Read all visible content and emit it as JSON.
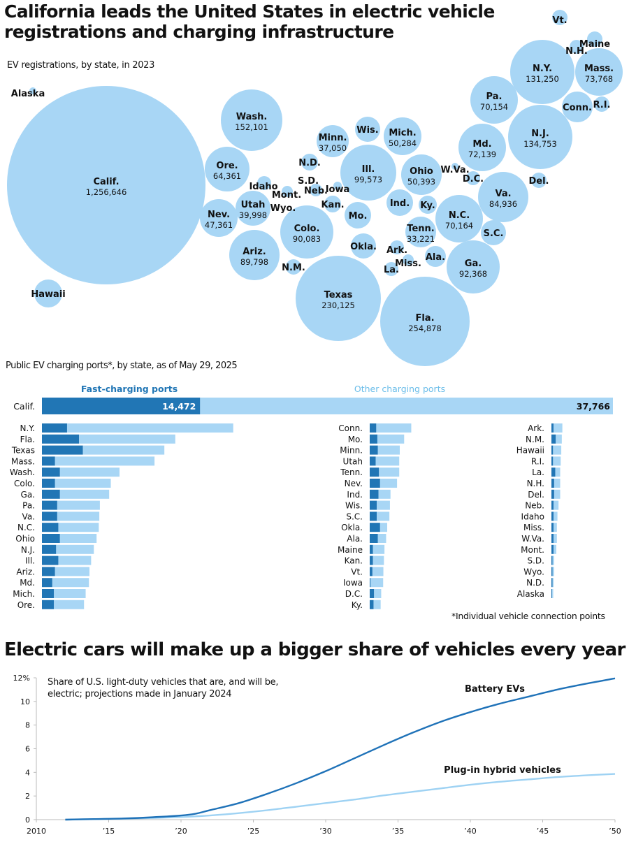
{
  "titles": {
    "main": "California leads the United States in electric vehicle registrations and charging infrastructure",
    "projection": "Electric cars will make up a bigger share of vehicles every year"
  },
  "footnote": "*Individual vehicle connection points",
  "colors": {
    "bubble": "#a8d6f5",
    "fast": "#2176b5",
    "other": "#a8d6f5",
    "bev_line": "#1f72b8",
    "phev_line": "#9ed2f3",
    "fast_label": "#2176b5",
    "other_label": "#6bbde9"
  },
  "chart_data": [
    {
      "type": "bubble",
      "title": "EV registrations, by state, in 2023",
      "note": "Bubble area proportional to registrations; laid out roughly by geography",
      "bubbles": [
        {
          "state": "Calif.",
          "value": 1256646,
          "value_label": "1,256,646",
          "labeled_value": true
        },
        {
          "state": "Alaska",
          "labeled_value": false
        },
        {
          "state": "Hawaii",
          "labeled_value": false
        },
        {
          "state": "Wash.",
          "value": 152101,
          "value_label": "152,101",
          "labeled_value": true
        },
        {
          "state": "Ore.",
          "value": 64361,
          "value_label": "64,361",
          "labeled_value": true
        },
        {
          "state": "Nev.",
          "value": 47361,
          "value_label": "47,361",
          "labeled_value": true
        },
        {
          "state": "Idaho",
          "labeled_value": false
        },
        {
          "state": "Utah",
          "value": 39998,
          "value_label": "39,998",
          "labeled_value": true
        },
        {
          "state": "Ariz.",
          "value": 89798,
          "value_label": "89,798",
          "labeled_value": true
        },
        {
          "state": "Mont.",
          "labeled_value": false
        },
        {
          "state": "Wyo.",
          "labeled_value": false
        },
        {
          "state": "Colo.",
          "value": 90083,
          "value_label": "90,083",
          "labeled_value": true
        },
        {
          "state": "N.M.",
          "labeled_value": false
        },
        {
          "state": "N.D.",
          "labeled_value": false
        },
        {
          "state": "S.D.",
          "labeled_value": false
        },
        {
          "state": "Neb.",
          "labeled_value": false
        },
        {
          "state": "Kan.",
          "labeled_value": false
        },
        {
          "state": "Texas",
          "value": 230125,
          "value_label": "230,125",
          "labeled_value": true
        },
        {
          "state": "Okla.",
          "labeled_value": false
        },
        {
          "state": "Minn.",
          "value": 37050,
          "value_label": "37,050",
          "labeled_value": true
        },
        {
          "state": "Iowa",
          "labeled_value": false
        },
        {
          "state": "Mo.",
          "labeled_value": false
        },
        {
          "state": "Ark.",
          "labeled_value": false
        },
        {
          "state": "La.",
          "labeled_value": false
        },
        {
          "state": "Wis.",
          "labeled_value": false
        },
        {
          "state": "Ill.",
          "value": 99573,
          "value_label": "99,573",
          "labeled_value": true
        },
        {
          "state": "Miss.",
          "labeled_value": false
        },
        {
          "state": "Mich.",
          "value": 50284,
          "value_label": "50,284",
          "labeled_value": true
        },
        {
          "state": "Ind.",
          "labeled_value": false
        },
        {
          "state": "Ky.",
          "labeled_value": false
        },
        {
          "state": "Tenn.",
          "value": 33221,
          "value_label": "33,221",
          "labeled_value": true
        },
        {
          "state": "Ala.",
          "labeled_value": false
        },
        {
          "state": "Ohio",
          "value": 50393,
          "value_label": "50,393",
          "labeled_value": true
        },
        {
          "state": "Ga.",
          "value": 92368,
          "value_label": "92,368",
          "labeled_value": true
        },
        {
          "state": "Fla.",
          "value": 254878,
          "value_label": "254,878",
          "labeled_value": true
        },
        {
          "state": "W.Va.",
          "labeled_value": false
        },
        {
          "state": "N.C.",
          "value": 70164,
          "value_label": "70,164",
          "labeled_value": true
        },
        {
          "state": "S.C.",
          "labeled_value": false
        },
        {
          "state": "Va.",
          "value": 84936,
          "value_label": "84,936",
          "labeled_value": true
        },
        {
          "state": "D.C.",
          "labeled_value": false
        },
        {
          "state": "Md.",
          "value": 72139,
          "value_label": "72,139",
          "labeled_value": true
        },
        {
          "state": "Del.",
          "labeled_value": false
        },
        {
          "state": "Pa.",
          "value": 70154,
          "value_label": "70,154",
          "labeled_value": true
        },
        {
          "state": "N.J.",
          "value": 134753,
          "value_label": "134,753",
          "labeled_value": true
        },
        {
          "state": "N.Y.",
          "value": 131250,
          "value_label": "131,250",
          "labeled_value": true
        },
        {
          "state": "Conn.",
          "labeled_value": false
        },
        {
          "state": "R.I.",
          "labeled_value": false
        },
        {
          "state": "Mass.",
          "value": 73768,
          "value_label": "73,768",
          "labeled_value": true
        },
        {
          "state": "Vt.",
          "labeled_value": false
        },
        {
          "state": "N.H.",
          "labeled_value": false
        },
        {
          "state": "Maine",
          "labeled_value": false
        }
      ]
    },
    {
      "type": "bar",
      "stacked": true,
      "orientation": "horizontal",
      "title": "Public EV charging ports*, by state, as of May 29, 2025",
      "legend": [
        "Fast-charging ports",
        "Other charging ports"
      ],
      "legend_placement": "top",
      "series_names": [
        "fast",
        "other"
      ],
      "highlight": {
        "state": "Calif.",
        "fast": 14472,
        "fast_label": "14,472",
        "other": 37766,
        "other_label": "37,766"
      },
      "columns": [
        [
          {
            "state": "N.Y.",
            "fast": 2300,
            "other": 15200
          },
          {
            "state": "Fla.",
            "fast": 3400,
            "other": 8800
          },
          {
            "state": "Texas",
            "fast": 3750,
            "other": 7450
          },
          {
            "state": "Mass.",
            "fast": 1200,
            "other": 9100
          },
          {
            "state": "Wash.",
            "fast": 1650,
            "other": 5450
          },
          {
            "state": "Colo.",
            "fast": 1200,
            "other": 5100
          },
          {
            "state": "Ga.",
            "fast": 1650,
            "other": 4500
          },
          {
            "state": "Pa.",
            "fast": 1400,
            "other": 3900
          },
          {
            "state": "Va.",
            "fast": 1400,
            "other": 3850
          },
          {
            "state": "N.C.",
            "fast": 1500,
            "other": 3700
          },
          {
            "state": "Ohio",
            "fast": 1650,
            "other": 3350
          },
          {
            "state": "N.J.",
            "fast": 1300,
            "other": 3450
          },
          {
            "state": "Ill.",
            "fast": 1500,
            "other": 3000
          },
          {
            "state": "Ariz.",
            "fast": 1200,
            "other": 3150
          },
          {
            "state": "Md.",
            "fast": 950,
            "other": 3350
          },
          {
            "state": "Mich.",
            "fast": 1100,
            "other": 2900
          },
          {
            "state": "Ore.",
            "fast": 1100,
            "other": 2750
          }
        ],
        [
          {
            "state": "Conn.",
            "fast": 600,
            "other": 3200
          },
          {
            "state": "Mo.",
            "fast": 700,
            "other": 2450
          },
          {
            "state": "Minn.",
            "fast": 750,
            "other": 2000
          },
          {
            "state": "Utah",
            "fast": 550,
            "other": 2150
          },
          {
            "state": "Tenn.",
            "fast": 850,
            "other": 1850
          },
          {
            "state": "Nev.",
            "fast": 950,
            "other": 1550
          },
          {
            "state": "Ind.",
            "fast": 800,
            "other": 1100
          },
          {
            "state": "Wis.",
            "fast": 650,
            "other": 1200
          },
          {
            "state": "S.C.",
            "fast": 650,
            "other": 1150
          },
          {
            "state": "Okla.",
            "fast": 950,
            "other": 650
          },
          {
            "state": "Ala.",
            "fast": 750,
            "other": 750
          },
          {
            "state": "Maine",
            "fast": 300,
            "other": 1050
          },
          {
            "state": "Kan.",
            "fast": 300,
            "other": 1000
          },
          {
            "state": "Vt.",
            "fast": 250,
            "other": 1000
          },
          {
            "state": "Iowa",
            "fast": 80,
            "other": 1150
          },
          {
            "state": "D.C.",
            "fast": 400,
            "other": 650
          },
          {
            "state": "Ky.",
            "fast": 350,
            "other": 650
          }
        ],
        [
          {
            "state": "Ark.",
            "fast": 200,
            "other": 800
          },
          {
            "state": "N.M.",
            "fast": 400,
            "other": 550
          },
          {
            "state": "Hawaii",
            "fast": 150,
            "other": 750
          },
          {
            "state": "R.I.",
            "fast": 150,
            "other": 700
          },
          {
            "state": "La.",
            "fast": 350,
            "other": 450
          },
          {
            "state": "N.H.",
            "fast": 250,
            "other": 550
          },
          {
            "state": "Del.",
            "fast": 250,
            "other": 550
          },
          {
            "state": "Neb.",
            "fast": 200,
            "other": 450
          },
          {
            "state": "Idaho",
            "fast": 200,
            "other": 350
          },
          {
            "state": "Miss.",
            "fast": 200,
            "other": 300
          },
          {
            "state": "W.Va.",
            "fast": 200,
            "other": 300
          },
          {
            "state": "Mont.",
            "fast": 200,
            "other": 250
          },
          {
            "state": "S.D.",
            "fast": 100,
            "other": 150
          },
          {
            "state": "Wyo.",
            "fast": 100,
            "other": 150
          },
          {
            "state": "N.D.",
            "fast": 100,
            "other": 100
          },
          {
            "state": "Alaska",
            "fast": 50,
            "other": 100
          }
        ]
      ]
    },
    {
      "type": "line",
      "title": "Share of U.S. light-duty vehicles that are, and will be, electric; projections made in January 2024",
      "xlabel": "",
      "ylabel": "",
      "x_ticks": [
        2010,
        2015,
        2020,
        2025,
        2030,
        2035,
        2040,
        2045,
        2050
      ],
      "x_tick_labels": [
        "2010",
        "’15",
        "’20",
        "’25",
        "’30",
        "’35",
        "’40",
        "’45",
        "’50"
      ],
      "y_ticks": [
        0,
        2,
        4,
        6,
        8,
        10,
        12
      ],
      "y_tick_labels": [
        "0",
        "2",
        "4",
        "6",
        "8",
        "10",
        "12%"
      ],
      "xlim": [
        2010,
        2050
      ],
      "ylim": [
        0,
        12
      ],
      "grid": false,
      "x": [
        2012,
        2014,
        2016,
        2018,
        2020,
        2021,
        2022,
        2024,
        2026,
        2028,
        2030,
        2032,
        2034,
        2036,
        2038,
        2040,
        2042,
        2044,
        2046,
        2048,
        2050
      ],
      "series": [
        {
          "name": "Battery EVs",
          "values": [
            0.0,
            0.05,
            0.1,
            0.2,
            0.35,
            0.5,
            0.8,
            1.4,
            2.2,
            3.1,
            4.1,
            5.2,
            6.3,
            7.35,
            8.3,
            9.1,
            9.8,
            10.4,
            11.0,
            11.5,
            11.95
          ]
        },
        {
          "name": "Plug-in hybrid vehicles",
          "values": [
            0.0,
            0.04,
            0.08,
            0.14,
            0.22,
            0.28,
            0.35,
            0.55,
            0.8,
            1.1,
            1.4,
            1.7,
            2.05,
            2.35,
            2.65,
            2.95,
            3.2,
            3.4,
            3.6,
            3.75,
            3.87
          ]
        }
      ]
    }
  ]
}
